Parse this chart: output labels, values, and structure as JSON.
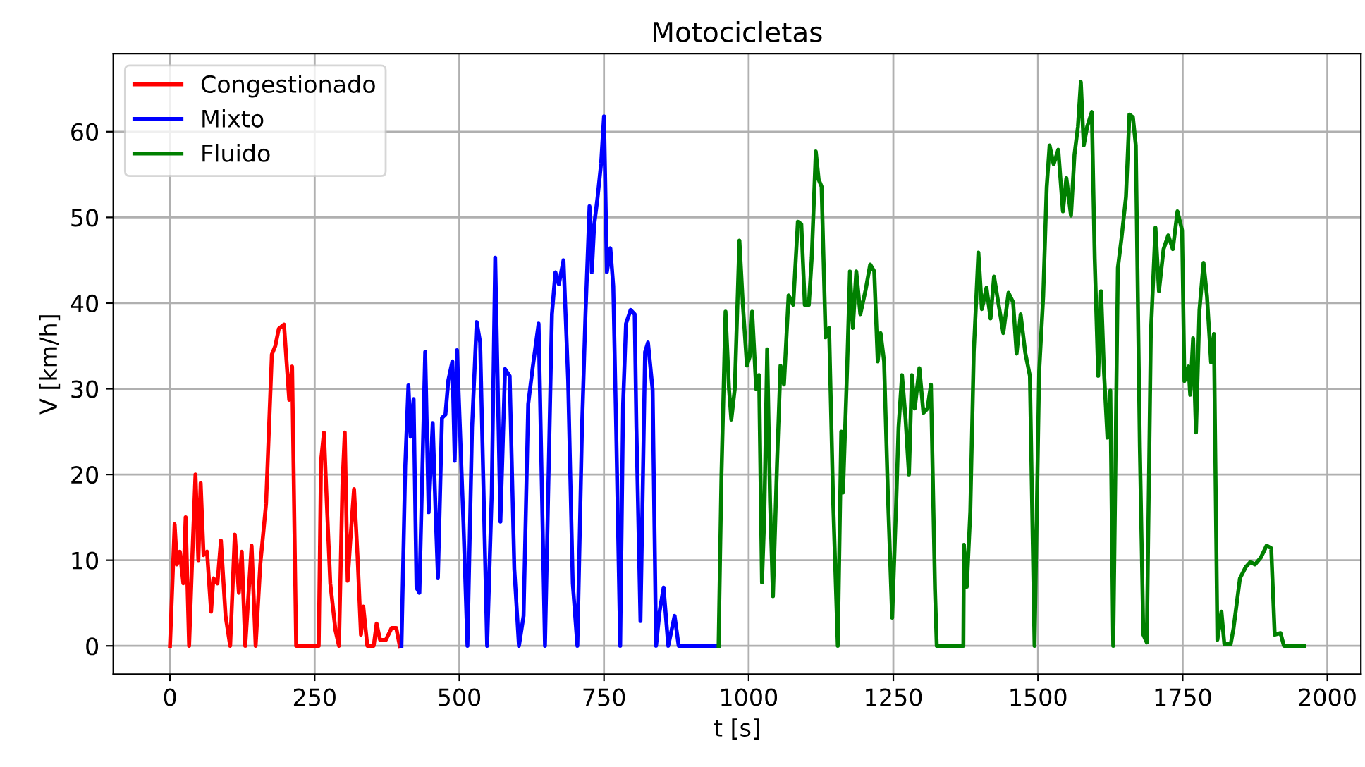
{
  "chart_data": {
    "type": "line",
    "title": "Motocicletas",
    "xlabel": "t [s]",
    "ylabel": "V [km/h]",
    "xlim": [
      -98,
      2058
    ],
    "ylim": [
      -3.3,
      69.1
    ],
    "xticks": [
      0,
      250,
      500,
      750,
      1000,
      1250,
      1500,
      1750,
      2000
    ],
    "yticks": [
      0,
      10,
      20,
      30,
      40,
      50,
      60
    ],
    "grid": true,
    "legend": "top left",
    "series": [
      {
        "name": "Congestionado",
        "color": "#ff0000",
        "x": [
          0,
          8,
          12,
          17,
          23,
          27,
          33,
          38,
          44,
          49,
          53,
          58,
          64,
          71,
          75,
          82,
          88,
          96,
          104,
          112,
          119,
          124,
          130,
          141,
          148,
          156,
          166,
          176,
          182,
          188,
          197,
          206,
          211,
          218,
          257,
          261,
          266,
          271,
          277,
          286,
          292,
          298,
          302,
          307,
          311,
          318,
          324,
          330,
          334,
          341,
          352,
          357,
          363,
          373,
          383,
          391,
          397
        ],
        "values": [
          0,
          14.2,
          9.5,
          11,
          7.3,
          15,
          0,
          9.5,
          20,
          10,
          19,
          10.6,
          11,
          4,
          7.9,
          7.3,
          12.3,
          3.5,
          0,
          13,
          6.2,
          11,
          0,
          11.7,
          0,
          9.5,
          16.6,
          34,
          35,
          37,
          37.5,
          28.7,
          32.6,
          0,
          0,
          21.6,
          24.9,
          16.6,
          7.3,
          1.8,
          0,
          18.8,
          24.9,
          7.6,
          11.7,
          18.3,
          10.6,
          1.3,
          4.6,
          0,
          0,
          2.6,
          0.7,
          0.7,
          2.1,
          2.1,
          0
        ]
      },
      {
        "name": "Mixto",
        "color": "#0000ff",
        "x": [
          400,
          406.5,
          412,
          416,
          421,
          426,
          431,
          441,
          447,
          454,
          459,
          463,
          470,
          476,
          481,
          488,
          492,
          496,
          501,
          507,
          514,
          522,
          530,
          536,
          548,
          556,
          562,
          571,
          579,
          587,
          595,
          603,
          611,
          619,
          627,
          637,
          648,
          660,
          666,
          672,
          680,
          688,
          696,
          704,
          712,
          718,
          725,
          729,
          733,
          739,
          745,
          750,
          755,
          761,
          766,
          771,
          778,
          783,
          788,
          796,
          803,
          806,
          813,
          821,
          826,
          834,
          840,
          846,
          853,
          861,
          872,
          879,
          948
        ],
        "values": [
          0,
          21,
          30.4,
          24.4,
          28.8,
          6.8,
          6.2,
          34.3,
          15.6,
          26,
          15.6,
          7.9,
          26.6,
          27,
          31,
          33.2,
          21.6,
          34.5,
          25.5,
          14.5,
          0,
          25.5,
          37.8,
          35.4,
          0,
          17.8,
          45.3,
          14.5,
          32.3,
          31.5,
          9,
          0,
          3.5,
          28.2,
          32.6,
          37.6,
          0,
          38.7,
          43.6,
          42.2,
          45,
          31,
          7.3,
          0,
          25.5,
          38.7,
          51.3,
          43.6,
          49.1,
          52.4,
          56.3,
          61.8,
          43.6,
          46.4,
          42,
          25.5,
          0,
          28.2,
          37.6,
          39.2,
          38.7,
          25.5,
          2.9,
          34.3,
          35.4,
          29.9,
          0,
          4,
          6.8,
          0,
          3.5,
          0,
          0
        ]
      },
      {
        "name": "Fluido",
        "color": "#008000",
        "x": [
          948,
          953,
          960,
          966,
          970,
          976,
          984,
          990,
          997,
          1002,
          1006,
          1013,
          1018,
          1023,
          1027,
          1032,
          1037,
          1042,
          1049,
          1055,
          1061,
          1069,
          1077,
          1085,
          1091,
          1097,
          1104,
          1109,
          1116,
          1121,
          1126,
          1133,
          1139,
          1146,
          1154,
          1160,
          1163,
          1170,
          1175,
          1180,
          1186,
          1193,
          1202,
          1210,
          1217,
          1223,
          1228,
          1234,
          1241,
          1248,
          1255,
          1259,
          1265,
          1271,
          1277,
          1282,
          1287,
          1295,
          1302,
          1309,
          1315,
          1322,
          1325,
          1371,
          1372,
          1377,
          1383,
          1389,
          1397,
          1403,
          1411,
          1418,
          1424,
          1432,
          1440,
          1449,
          1457,
          1463,
          1470,
          1478,
          1486,
          1494,
          1502,
          1509,
          1515,
          1520,
          1527,
          1535,
          1543,
          1549,
          1557,
          1563,
          1569,
          1574,
          1579,
          1585,
          1593,
          1598,
          1604,
          1609,
          1614,
          1620,
          1625,
          1630,
          1638,
          1644,
          1652,
          1658,
          1664,
          1669,
          1676,
          1682,
          1688,
          1695,
          1703,
          1709,
          1717,
          1725,
          1733,
          1741,
          1749,
          1753,
          1760,
          1763,
          1768,
          1773,
          1779,
          1786,
          1792,
          1799,
          1804,
          1810,
          1817,
          1822,
          1833,
          1838,
          1849,
          1859,
          1867,
          1875,
          1885,
          1895,
          1903,
          1909,
          1919,
          1925,
          1960
        ],
        "values": [
          0,
          20,
          39,
          30,
          26.4,
          30,
          47.3,
          39.8,
          32.7,
          33.8,
          39,
          30,
          31.6,
          7.4,
          15.1,
          34.6,
          16.8,
          5.8,
          21.2,
          32.7,
          30.5,
          40.9,
          39.8,
          49.5,
          49.2,
          39.8,
          39.8,
          45.3,
          57.7,
          54.4,
          53.6,
          36,
          37.1,
          16.8,
          0,
          25,
          17.9,
          32.1,
          43.7,
          37.1,
          43.7,
          38.7,
          41.5,
          44.5,
          43.7,
          33.2,
          36.5,
          33.2,
          16.8,
          3.3,
          16.8,
          25.5,
          31.6,
          26.6,
          20,
          31.6,
          27.7,
          32.4,
          27.2,
          27.7,
          30.5,
          6.6,
          0,
          0,
          11.8,
          6.9,
          15.7,
          34.3,
          45.9,
          39.3,
          41.8,
          38.2,
          43.1,
          39.8,
          36.5,
          41.2,
          40.1,
          34.1,
          38.7,
          34.2,
          31.5,
          0,
          32,
          40.8,
          53.5,
          58.4,
          56.2,
          57.9,
          50.7,
          54.6,
          50.2,
          57.3,
          60.6,
          65.8,
          58.4,
          60.6,
          62.3,
          45.2,
          31.5,
          41.4,
          32,
          24.3,
          29.8,
          0,
          44.1,
          47.4,
          52.4,
          62,
          61.7,
          58.4,
          23.2,
          1.3,
          0.4,
          36.4,
          48.8,
          41.4,
          46.3,
          47.9,
          46.3,
          50.7,
          48.5,
          30.9,
          32.6,
          29.3,
          35.9,
          24.9,
          39.2,
          44.7,
          40.8,
          33.1,
          36.4,
          0.7,
          4,
          0.2,
          0.2,
          2.1,
          7.9,
          9.2,
          9.8,
          9.5,
          10.3,
          11.7,
          11.4,
          1.3,
          1.5,
          0,
          0
        ]
      }
    ]
  }
}
